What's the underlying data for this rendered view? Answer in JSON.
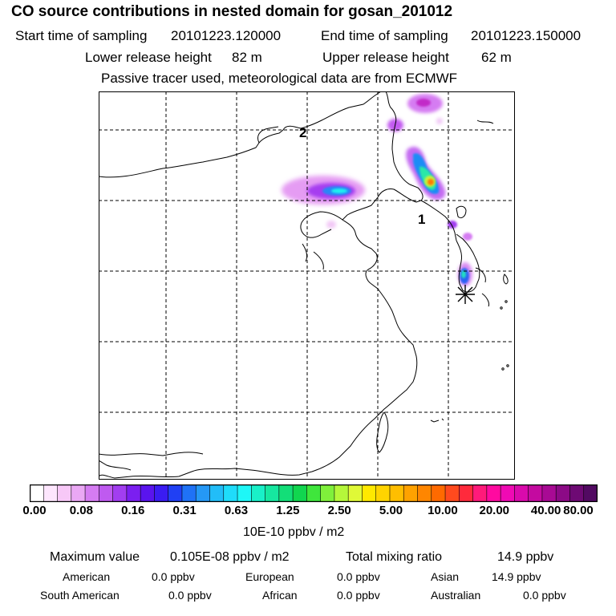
{
  "header": {
    "title": "CO  source contributions in nested domain for gosan_201012",
    "start_label": "Start time of sampling",
    "start_value": "20101223.120000",
    "end_label": "End time of sampling",
    "end_value": "20101223.150000",
    "lower_label": "Lower release height",
    "lower_value": "82 m",
    "upper_label": "Upper release height",
    "upper_value": "62 m",
    "note": "Passive tracer used, meteorological data are from ECMWF"
  },
  "map": {
    "markers": [
      "1",
      "2"
    ],
    "receptor_symbol": "asterisk"
  },
  "colorbar": {
    "ticks": [
      "0.00",
      "0.08",
      "0.16",
      "0.31",
      "0.63",
      "1.25",
      "2.50",
      "5.00",
      "10.00",
      "20.00",
      "40.00",
      "80.00"
    ],
    "units": "10E-10 ppbv / m2",
    "colors": [
      "#ffffff",
      "#fde6fd",
      "#f7c8f7",
      "#eaa8f4",
      "#d57cf2",
      "#bf5af0",
      "#a23ef0",
      "#7b1ff0",
      "#5a14ee",
      "#3a1cf2",
      "#2040f4",
      "#1f72f6",
      "#2598f6",
      "#22bdf8",
      "#1fdcfa",
      "#1ef7f7",
      "#19f0c8",
      "#16e7a0",
      "#13de78",
      "#11d64f",
      "#3fe63c",
      "#7ff03b",
      "#b5f73a",
      "#e0f937",
      "#ffe900",
      "#ffd400",
      "#ffbe00",
      "#ffa200",
      "#ff8600",
      "#ff6a00",
      "#ff4a1e",
      "#ff2a3c",
      "#ff1a7a",
      "#ff0aa0",
      "#f00ab4",
      "#da0aac",
      "#c40aa0",
      "#a80a94",
      "#8c0a86",
      "#6e0a74",
      "#520a62"
    ]
  },
  "stats": {
    "max_label": "Maximum value",
    "max_value": "0.105E-08 ppbv / m2",
    "total_label": "Total mixing ratio",
    "total_value": "14.9 ppbv"
  },
  "regions": [
    {
      "name": "American",
      "value": "0.0 ppbv"
    },
    {
      "name": "European",
      "value": "0.0 ppbv"
    },
    {
      "name": "Asian",
      "value": "14.9 ppbv"
    },
    {
      "name": "South American",
      "value": "0.0 ppbv"
    },
    {
      "name": "African",
      "value": "0.0 ppbv"
    },
    {
      "name": "Australian",
      "value": "0.0 ppbv"
    }
  ]
}
